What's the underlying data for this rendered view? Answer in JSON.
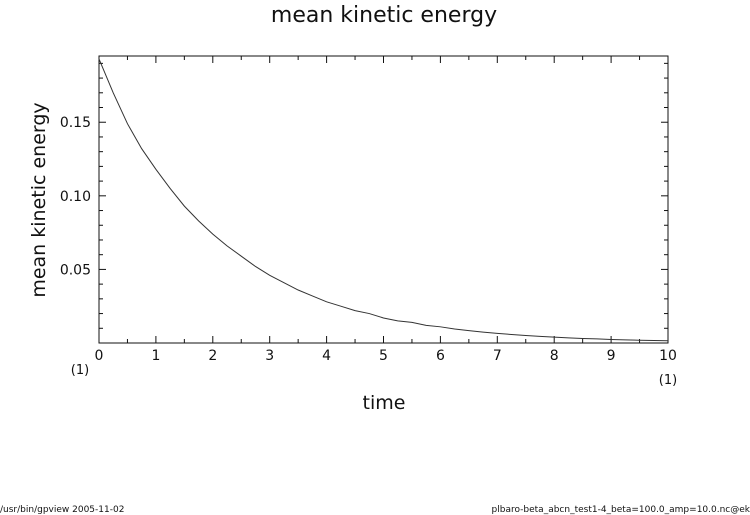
{
  "chart_data": {
    "type": "line",
    "title": "mean kinetic energy",
    "xlabel": "time",
    "ylabel": "mean kinetic energy",
    "xlim": [
      0,
      10
    ],
    "ylim": [
      0.0,
      0.195
    ],
    "x_unit_label": "(1)",
    "y_unit_label": "(1)",
    "x_ticks": [
      "0",
      "1",
      "2",
      "3",
      "4",
      "5",
      "6",
      "7",
      "8",
      "9",
      "10"
    ],
    "y_ticks": [
      "0.05",
      "0.10",
      "0.15"
    ],
    "grid": false,
    "series": [
      {
        "x": [
          0.0,
          0.25,
          0.5,
          0.75,
          1.0,
          1.25,
          1.5,
          1.75,
          2.0,
          2.25,
          2.5,
          2.75,
          3.0,
          3.25,
          3.5,
          3.75,
          4.0,
          4.25,
          4.5,
          4.75,
          5.0,
          5.25,
          5.5,
          5.75,
          6.0,
          6.25,
          6.5,
          6.75,
          7.0,
          7.25,
          7.5,
          7.75,
          8.0,
          8.25,
          8.5,
          8.75,
          9.0,
          9.25,
          9.5,
          9.75,
          10.0
        ],
        "y": [
          0.193,
          0.17,
          0.149,
          0.132,
          0.118,
          0.105,
          0.093,
          0.083,
          0.074,
          0.066,
          0.059,
          0.052,
          0.046,
          0.041,
          0.036,
          0.032,
          0.028,
          0.025,
          0.022,
          0.02,
          0.017,
          0.015,
          0.014,
          0.012,
          0.011,
          0.0095,
          0.0084,
          0.0074,
          0.0065,
          0.0058,
          0.0051,
          0.0045,
          0.004,
          0.0035,
          0.0031,
          0.0028,
          0.0024,
          0.0021,
          0.0019,
          0.0017,
          0.0015
        ]
      }
    ]
  },
  "footer": {
    "left": "/usr/bin/gpview   2005-11-02",
    "right": "plbaro-beta_abcn_test1-4_beta=100.0_amp=10.0.nc@ek"
  }
}
